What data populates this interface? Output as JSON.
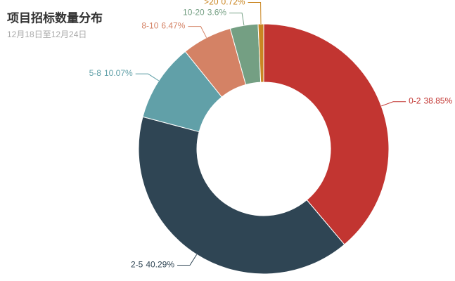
{
  "chart_data": {
    "type": "pie",
    "title": "项目招标数量分布",
    "subtitle": "12月18日至12月24日",
    "categories": [
      "0-2",
      "2-5",
      "5-8",
      "8-10",
      "10-20",
      ">20"
    ],
    "values": [
      38.85,
      40.29,
      10.07,
      6.47,
      3.6,
      0.72
    ],
    "value_labels": [
      "38.85%",
      "40.29%",
      "10.07%",
      "6.47%",
      "3.6%",
      "0.72%"
    ],
    "colors": [
      "#c23531",
      "#2f4554",
      "#61a0a8",
      "#d48265",
      "#749f83",
      "#ca8622"
    ]
  }
}
